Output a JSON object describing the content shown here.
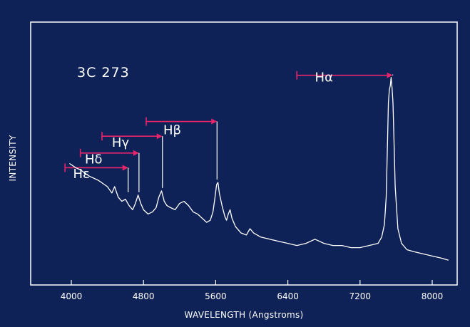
{
  "chart_data": {
    "type": "line",
    "object_label": "3C 273",
    "xlabel": "WAVELENGTH (Angstroms)",
    "ylabel": "INTENSITY",
    "xlim": [
      3450,
      8300
    ],
    "ylim": [
      0,
      100
    ],
    "x_ticks": [
      4000,
      4800,
      5600,
      6400,
      7200,
      8000
    ],
    "x_tick_labels": [
      "4000",
      "4800",
      "5600",
      "6400",
      "7200",
      "8000"
    ],
    "grid": false,
    "colors": {
      "background": "#0f2257",
      "foreground": "#ffffff",
      "marker": "#e8256a"
    },
    "spectrum": {
      "x": [
        3980,
        4050,
        4100,
        4200,
        4300,
        4400,
        4450,
        4480,
        4520,
        4560,
        4600,
        4640,
        4680,
        4710,
        4740,
        4770,
        4800,
        4850,
        4900,
        4940,
        4970,
        5000,
        5030,
        5060,
        5100,
        5150,
        5200,
        5250,
        5300,
        5350,
        5400,
        5450,
        5500,
        5540,
        5570,
        5590,
        5610,
        5625,
        5640,
        5670,
        5700,
        5720,
        5740,
        5760,
        5780,
        5820,
        5880,
        5940,
        5980,
        6020,
        6100,
        6200,
        6300,
        6400,
        6500,
        6600,
        6700,
        6750,
        6800,
        6900,
        7000,
        7100,
        7200,
        7300,
        7400,
        7440,
        7470,
        7490,
        7505,
        7515,
        7525,
        7535,
        7545,
        7555,
        7565,
        7575,
        7590,
        7620,
        7660,
        7720,
        7800,
        7900,
        8000,
        8100,
        8180
      ],
      "y": [
        51,
        49,
        48,
        45,
        43,
        40,
        37,
        40,
        35,
        33,
        34,
        31,
        29,
        32,
        36,
        32,
        29,
        27,
        28,
        30,
        35,
        38,
        33,
        31,
        30,
        29,
        32,
        33,
        31,
        28,
        27,
        25,
        23,
        24,
        28,
        34,
        41,
        42,
        37,
        31,
        26,
        24,
        27,
        29,
        25,
        21,
        18,
        17,
        20,
        18,
        16,
        15,
        14,
        13,
        12,
        13,
        15,
        14,
        13,
        12,
        12,
        11,
        11,
        12,
        13,
        16,
        22,
        35,
        62,
        80,
        86,
        88,
        92,
        87,
        80,
        65,
        40,
        20,
        13,
        10,
        9,
        8,
        7,
        6,
        5
      ]
    },
    "lines": [
      {
        "name": "Hα",
        "start_x": 6500,
        "end_x": 7562,
        "peak_y": 92,
        "label_x": 6700,
        "label_y": 90,
        "bracket_y": 93
      },
      {
        "name": "Hβ",
        "start_x": 4830,
        "end_x": 5615,
        "peak_y": 42,
        "label_x": 5020,
        "label_y": 65,
        "bracket_y": 71
      },
      {
        "name": "Hγ",
        "start_x": 4340,
        "end_x": 5010,
        "peak_y": 38,
        "label_x": 4450,
        "label_y": 59,
        "bracket_y": 64
      },
      {
        "name": "Hδ",
        "start_x": 4100,
        "end_x": 4750,
        "peak_y": 36,
        "label_x": 4150,
        "label_y": 51,
        "bracket_y": 56
      },
      {
        "name": "Hε",
        "start_x": 3930,
        "end_x": 4630,
        "peak_y": 36,
        "label_x": 4020,
        "label_y": 44,
        "bracket_y": 49
      }
    ]
  }
}
